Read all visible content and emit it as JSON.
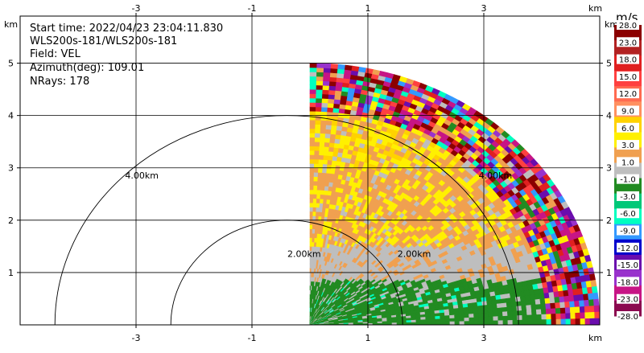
{
  "chart_data": {
    "type": "heatmap",
    "title": "",
    "info_lines": [
      "Start time: 2022/04/23 23:04:11.830",
      "WLS200s-181/WLS200s-181",
      "Field: VEL",
      "Azimuth(deg): 109.01",
      "NRays: 178"
    ],
    "xunit": "km",
    "yunit": "km",
    "xlim": [
      -5.0,
      5.0
    ],
    "ylim": [
      0.0,
      5.9
    ],
    "xticks": [
      -3,
      -1,
      1,
      3
    ],
    "yticks": [
      1,
      2,
      3,
      4,
      5
    ],
    "grid": true,
    "range_rings": [
      {
        "label": "2.00km",
        "radius": 2.0,
        "center_x": -0.4,
        "label_x": -0.1,
        "label_y": 1.3
      },
      {
        "label": "4.00km",
        "radius": 4.0,
        "center_x": -0.4,
        "label_x": -2.9,
        "label_y": 2.8
      }
    ],
    "extra_ring_labels": [
      {
        "label": "2.00km",
        "x": 1.8,
        "y": 1.3
      },
      {
        "label": "4.00km",
        "x": 3.2,
        "y": 2.8
      }
    ],
    "radar": {
      "origin_x": 0.0,
      "origin_y": 0.0,
      "max_range": 5.0,
      "az_start": 0,
      "az_end": 90,
      "nrays": 178
    },
    "colorbar": {
      "unit": "m/s",
      "labels": [
        "28.0",
        "23.0",
        "18.0",
        "15.0",
        "12.0",
        "9.0",
        "6.0",
        "3.0",
        "1.0",
        "-1.0",
        "-3.0",
        "-6.0",
        "-9.0",
        "-12.0",
        "-15.0",
        "-18.0",
        "-23.0",
        "-28.0"
      ],
      "colors": [
        "#8b0000",
        "#b22222",
        "#e02020",
        "#ff4040",
        "#ff6a50",
        "#ff9060",
        "#ffd200",
        "#fff000",
        "#f0a050",
        "#bebebe",
        "#228b22",
        "#00c878",
        "#00ffc0",
        "#3399ff",
        "#0000cd",
        "#6a0dad",
        "#9932cc",
        "#c71585",
        "#8b0a50"
      ]
    },
    "layers": [
      {
        "name": "near",
        "range": [
          0.0,
          0.85
        ],
        "colors": [
          "#228b22",
          "#228b22",
          "#bebebe",
          "#00ffc0"
        ],
        "weights": [
          0.6,
          0.2,
          0.15,
          0.05
        ]
      },
      {
        "name": "low",
        "range": [
          0.85,
          1.5
        ],
        "colors": [
          "#bebebe",
          "#f0a050"
        ],
        "weights": [
          0.75,
          0.25
        ]
      },
      {
        "name": "mid",
        "range": [
          1.5,
          3.0
        ],
        "colors": [
          "#f0a050",
          "#fff000",
          "#bebebe"
        ],
        "weights": [
          0.55,
          0.35,
          0.1
        ]
      },
      {
        "name": "upper",
        "range": [
          3.0,
          4.1
        ],
        "colors": [
          "#fff000",
          "#ffd200",
          "#f0a050",
          "#bebebe"
        ],
        "weights": [
          0.4,
          0.2,
          0.3,
          0.1
        ]
      },
      {
        "name": "noise",
        "range": [
          4.1,
          5.0
        ],
        "colors": [
          "#8b0000",
          "#c71585",
          "#fff000",
          "#00ffc0",
          "#3399ff",
          "#6a0dad",
          "#ff4040",
          "#f0a050",
          "#228b22",
          "#e02020",
          "#bebebe",
          "#9932cc"
        ],
        "weights": [
          0.14,
          0.14,
          0.1,
          0.07,
          0.07,
          0.08,
          0.1,
          0.1,
          0.06,
          0.06,
          0.04,
          0.04
        ]
      }
    ]
  }
}
